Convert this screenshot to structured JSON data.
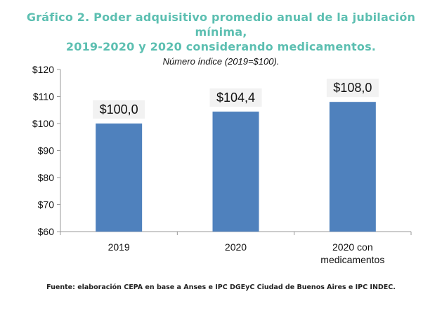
{
  "header": {
    "title_line1": "Gráfico 2. Poder adquisitivo promedio anual de la jubilación mínima,",
    "title_line2": "2019-2020 y 2020 considerando medicamentos.",
    "subtitle": "Número índice  (2019=$100)."
  },
  "footer": {
    "source": "Fuente: elaboración CEPA en base a Anses e IPC DGEyC Ciudad de Buenos Aires e IPC INDEC."
  },
  "colors": {
    "title": "#5cbfb1",
    "bar": "#4f81bd",
    "axis": "#999999"
  },
  "chart_data": {
    "type": "bar",
    "title": "Gráfico 2. Poder adquisitivo promedio anual de la jubilación mínima, 2019-2020 y 2020 considerando medicamentos.",
    "subtitle": "Número índice  (2019=$100).",
    "categories": [
      [
        "2019"
      ],
      [
        "2020"
      ],
      [
        "2020 con",
        "medicamentos"
      ]
    ],
    "values": [
      100.0,
      104.4,
      108.0
    ],
    "data_labels": [
      "$100,0",
      "$104,4",
      "$108,0"
    ],
    "ylim": [
      60,
      120
    ],
    "yticks": [
      60,
      70,
      80,
      90,
      100,
      110,
      120
    ],
    "ytick_labels": [
      "$60",
      "$70",
      "$80",
      "$90",
      "$100",
      "$110",
      "$120"
    ],
    "xlabel": "",
    "ylabel": "",
    "grid": false,
    "legend": "none"
  }
}
